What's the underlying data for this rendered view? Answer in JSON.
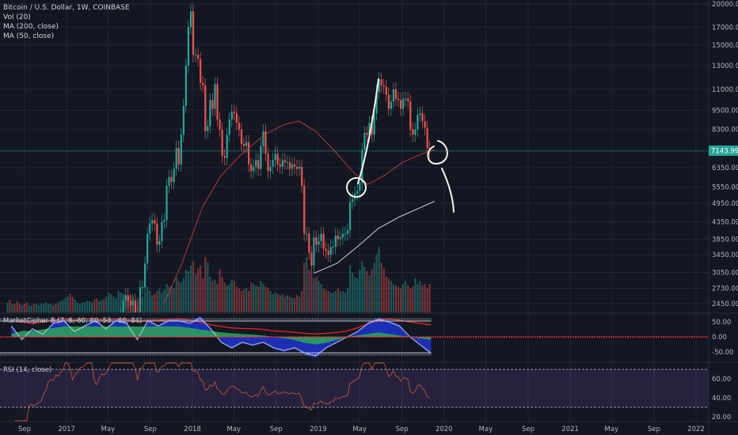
{
  "legend": {
    "title": "Bitcoin / U.S. Dollar, 1W, COINBASE",
    "indicators": [
      "Vol (20)",
      "MA (200, close)",
      "MA (50, close)"
    ],
    "oscillator": "MarketCipher B (7, 8, 60, 60, 53, -60, 84)",
    "rsi": "RSI (14, close)"
  },
  "colors": {
    "background": "#131722",
    "up": "#26a69a",
    "down": "#ef5350",
    "ma50": "#b2383a",
    "ma200": "#d1d4dc",
    "price_line": "#26a69a",
    "wave": "#1c2fb4",
    "money_flow": "#2e9e5e",
    "rsi_line": "#c0503a",
    "rsi_band": "#7e57c2"
  },
  "chart_data": [
    {
      "type": "candlestick",
      "scale": "log",
      "interval": "1W",
      "start_week": "2016-07-04",
      "current_price": "7143.99",
      "ylim": [
        2450,
        20000
      ],
      "y_ticks": [
        "20000.00",
        "17000.00",
        "15000.00",
        "13000.00",
        "11000.00",
        "9500.00",
        "8300.00",
        "6350.00",
        "5550.00",
        "4950.00",
        "4350.00",
        "3850.00",
        "3450.00",
        "3050.00",
        "2730.00",
        "2450.00"
      ],
      "x_ticks": [
        {
          "label": "Sep",
          "date": "2016-09-01"
        },
        {
          "label": "2017",
          "date": "2017-01-01"
        },
        {
          "label": "May",
          "date": "2017-05-01"
        },
        {
          "label": "Sep",
          "date": "2017-09-01"
        },
        {
          "label": "2018",
          "date": "2018-01-01"
        },
        {
          "label": "May",
          "date": "2018-05-01"
        },
        {
          "label": "Sep",
          "date": "2018-09-01"
        },
        {
          "label": "2019",
          "date": "2019-01-01"
        },
        {
          "label": "May",
          "date": "2019-05-01"
        },
        {
          "label": "Sep",
          "date": "2019-09-01"
        },
        {
          "label": "2020",
          "date": "2020-01-01"
        },
        {
          "label": "May",
          "date": "2020-05-01"
        },
        {
          "label": "Sep",
          "date": "2020-09-01"
        },
        {
          "label": "2021",
          "date": "2021-01-01"
        },
        {
          "label": "May",
          "date": "2021-05-01"
        },
        {
          "label": "Sep",
          "date": "2021-09-01"
        },
        {
          "label": "2022",
          "date": "2022-01-01"
        }
      ],
      "closes": [
        670,
        650,
        660,
        625,
        590,
        575,
        585,
        575,
        570,
        605,
        610,
        600,
        605,
        610,
        615,
        640,
        655,
        700,
        710,
        705,
        740,
        735,
        760,
        780,
        890,
        960,
        900,
        820,
        890,
        920,
        1000,
        1010,
        1050,
        1120,
        1190,
        1250,
        1020,
        960,
        1080,
        1190,
        1180,
        1230,
        1350,
        1550,
        1700,
        1980,
        2050,
        2280,
        2500,
        2600,
        2500,
        2420,
        2500,
        2300,
        2000,
        2750,
        2750,
        3250,
        4000,
        4300,
        4400,
        4300,
        3700,
        3800,
        4350,
        4400,
        5600,
        5950,
        5750,
        6300,
        7300,
        6500,
        8000,
        9800,
        13000,
        17000,
        19000,
        14000,
        14000,
        13600,
        11500,
        11300,
        8200,
        8500,
        10200,
        9600,
        11400,
        8900,
        8300,
        6900,
        6800,
        8000,
        8900,
        9400,
        9300,
        8700,
        8300,
        7500,
        7400,
        7600,
        6500,
        6200,
        6400,
        6700,
        6300,
        7400,
        8200,
        7000,
        6200,
        6400,
        6700,
        7000,
        6500,
        6400,
        6700,
        6600,
        6600,
        6300,
        6500,
        6400,
        6300,
        6400,
        5600,
        4000,
        4000,
        3500,
        3200,
        3900,
        3700,
        3800,
        4000,
        3600,
        3550,
        3450,
        3650,
        3650,
        3950,
        3850,
        3900,
        4000,
        4000,
        4100,
        5000,
        5100,
        5300,
        5400,
        5700,
        7200,
        8100,
        8000,
        8700,
        8000,
        9300,
        10800,
        11800,
        11300,
        11200,
        10600,
        9600,
        10100,
        11000,
        10300,
        10200,
        9600,
        10300,
        10300,
        10100,
        8300,
        8000,
        8300,
        9200,
        9300,
        8800,
        8400,
        7300,
        7144
      ],
      "volumes": [
        14,
        18,
        12,
        12,
        16,
        12,
        10,
        12,
        14,
        10,
        10,
        12,
        12,
        10,
        12,
        12,
        14,
        12,
        12,
        10,
        12,
        14,
        16,
        18,
        20,
        22,
        26,
        22,
        18,
        14,
        12,
        14,
        14,
        16,
        16,
        14,
        18,
        20,
        16,
        18,
        18,
        22,
        28,
        26,
        22,
        20,
        30,
        28,
        26,
        24,
        20,
        24,
        22,
        18,
        20,
        18,
        22,
        26,
        36,
        30,
        24,
        26,
        30,
        34,
        28,
        32,
        40,
        36,
        38,
        34,
        50,
        44,
        42,
        48,
        60,
        58,
        66,
        72,
        54,
        62,
        66,
        48,
        78,
        70,
        50,
        44,
        46,
        40,
        60,
        50,
        42,
        38,
        40,
        46,
        44,
        36,
        34,
        30,
        32,
        34,
        30,
        42,
        40,
        38,
        36,
        44,
        40,
        36,
        34,
        30,
        26,
        28,
        26,
        24,
        26,
        22,
        24,
        22,
        20,
        20,
        24,
        22,
        30,
        70,
        78,
        60,
        56,
        48,
        50,
        44,
        40,
        34,
        32,
        30,
        28,
        28,
        30,
        34,
        30,
        30,
        28,
        34,
        66,
        56,
        50,
        48,
        60,
        72,
        64,
        58,
        52,
        60,
        70,
        82,
        92,
        70,
        62,
        50,
        48,
        44,
        40,
        38,
        36,
        34,
        40,
        44,
        38,
        34,
        36,
        48,
        40,
        44,
        38,
        40,
        34,
        40
      ],
      "ma50": [
        [
          "2017-10-01",
          2450
        ],
        [
          "2017-11-25",
          3300
        ],
        [
          "2018-01-20",
          4800
        ],
        [
          "2018-03-15",
          6000
        ],
        [
          "2018-05-15",
          7000
        ],
        [
          "2018-07-20",
          8000
        ],
        [
          "2018-09-15",
          8600
        ],
        [
          "2018-10-28",
          8800
        ],
        [
          "2018-12-15",
          8200
        ],
        [
          "2019-02-05",
          7200
        ],
        [
          "2019-04-01",
          6200
        ],
        [
          "2019-05-15",
          5650
        ],
        [
          "2019-07-01",
          6000
        ],
        [
          "2019-08-25",
          6600
        ],
        [
          "2019-10-20",
          7000
        ],
        [
          "2019-11-25",
          7200
        ]
      ],
      "ma200": [
        [
          "2018-12-10",
          3030
        ],
        [
          "2019-02-15",
          3250
        ],
        [
          "2019-04-15",
          3650
        ],
        [
          "2019-06-15",
          4150
        ],
        [
          "2019-08-15",
          4500
        ],
        [
          "2019-10-15",
          4800
        ],
        [
          "2019-11-25",
          5020
        ]
      ]
    },
    {
      "type": "area",
      "name": "MarketCipher B",
      "start_month": "2016-07",
      "y_ticks": [
        "50.00",
        "0.00",
        "-50.00"
      ],
      "wave": [
        40,
        -10,
        30,
        10,
        50,
        60,
        20,
        40,
        60,
        30,
        60,
        50,
        -10,
        60,
        40,
        60,
        60,
        50,
        70,
        30,
        -20,
        -40,
        -20,
        -30,
        -20,
        -40,
        -50,
        -40,
        -60,
        -70,
        -40,
        -20,
        0,
        20,
        50,
        65,
        55,
        40,
        0,
        -30,
        -60
      ],
      "money_flow": [
        10,
        20,
        20,
        25,
        30,
        35,
        35,
        35,
        35,
        35,
        35,
        35,
        35,
        35,
        35,
        35,
        35,
        30,
        25,
        20,
        15,
        12,
        10,
        8,
        5,
        0,
        -5,
        -10,
        -20,
        -25,
        -20,
        -10,
        0,
        5,
        10,
        15,
        10,
        5,
        0,
        -5,
        -10
      ],
      "rsi_mfi_line": [
        55,
        50,
        45,
        50,
        55,
        60,
        55,
        60,
        60,
        55,
        60,
        58,
        50,
        55,
        55,
        58,
        60,
        55,
        50,
        40,
        35,
        30,
        28,
        27,
        25,
        20,
        18,
        15,
        12,
        10,
        12,
        15,
        20,
        30,
        45,
        55,
        60,
        55,
        50,
        45,
        40
      ]
    },
    {
      "type": "line",
      "name": "RSI (14, close)",
      "y_ticks": [
        "60.00",
        "40.00",
        "20.00"
      ],
      "bands": [
        70,
        30
      ]
    }
  ]
}
